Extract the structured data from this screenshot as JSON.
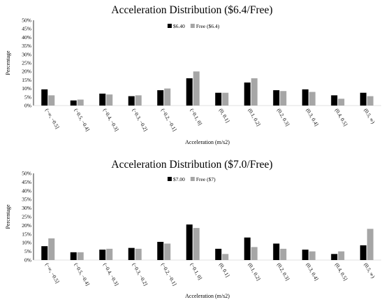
{
  "chart_data": [
    {
      "type": "bar",
      "title": "Acceleration Distribution ($6.4/Free)",
      "xlabel": "Acceleration (m/s2)",
      "ylabel": "Percentage",
      "ylim": [
        0,
        50
      ],
      "yticks": [
        "0%",
        "5%",
        "10%",
        "15%",
        "20%",
        "25%",
        "30%",
        "35%",
        "40%",
        "45%",
        "50%"
      ],
      "grid": false,
      "legend_position": "top-center",
      "categories": [
        "(−∞, −0.5]",
        "(−0.5, −0.4]",
        "(−0.4, −0.3]",
        "(−0.3, −0.2]",
        "(−0.2, −0.1]",
        "(−0.1, 0]",
        "(0, 0.1]",
        "(0.1, 0.2]",
        "(0.2, 0.3]",
        "(0.3, 0.4]",
        "(0.4, 0.5]",
        "(0.5, ∞)"
      ],
      "series": [
        {
          "name": "$6.40",
          "color": "#000000",
          "values": [
            9.5,
            3,
            7,
            5.5,
            9,
            16,
            7.5,
            13.5,
            9,
            9.5,
            6,
            7.5
          ]
        },
        {
          "name": "Free ($6.4)",
          "color": "#a6a6a6",
          "values": [
            6,
            3.5,
            6.5,
            6,
            10,
            20,
            7.5,
            16,
            8.5,
            8,
            4,
            5.5
          ]
        }
      ]
    },
    {
      "type": "bar",
      "title": "Acceleration Distribution ($7.0/Free)",
      "xlabel": "Acceleration (m/s2)",
      "ylabel": "Percentage",
      "ylim": [
        0,
        50
      ],
      "yticks": [
        "0%",
        "5%",
        "10%",
        "15%",
        "20%",
        "25%",
        "30%",
        "35%",
        "40%",
        "45%",
        "50%"
      ],
      "grid": false,
      "legend_position": "top-center",
      "categories": [
        "(−∞, −0.5]",
        "(−0.5, −0.4]",
        "(−0.4, −0.3]",
        "(−0.3, −0.2]",
        "(−0.2, −0.1]",
        "(−0.1, 0]",
        "(0, 0.1]",
        "(0.1, 0.2]",
        "(0.2, 0.3]",
        "(0.3, 0.4]",
        "(0.4, 0.5]",
        "(0.5, ∞)"
      ],
      "series": [
        {
          "name": "$7.00",
          "color": "#000000",
          "values": [
            8,
            4.5,
            6,
            7,
            10.5,
            20.5,
            6.5,
            13,
            9.5,
            6,
            3.5,
            8.5
          ]
        },
        {
          "name": "Free ($7)",
          "color": "#a6a6a6",
          "values": [
            12.5,
            4.5,
            6.5,
            6.5,
            9.5,
            18.5,
            3.5,
            7.5,
            6.5,
            5,
            5,
            18
          ]
        }
      ]
    }
  ]
}
